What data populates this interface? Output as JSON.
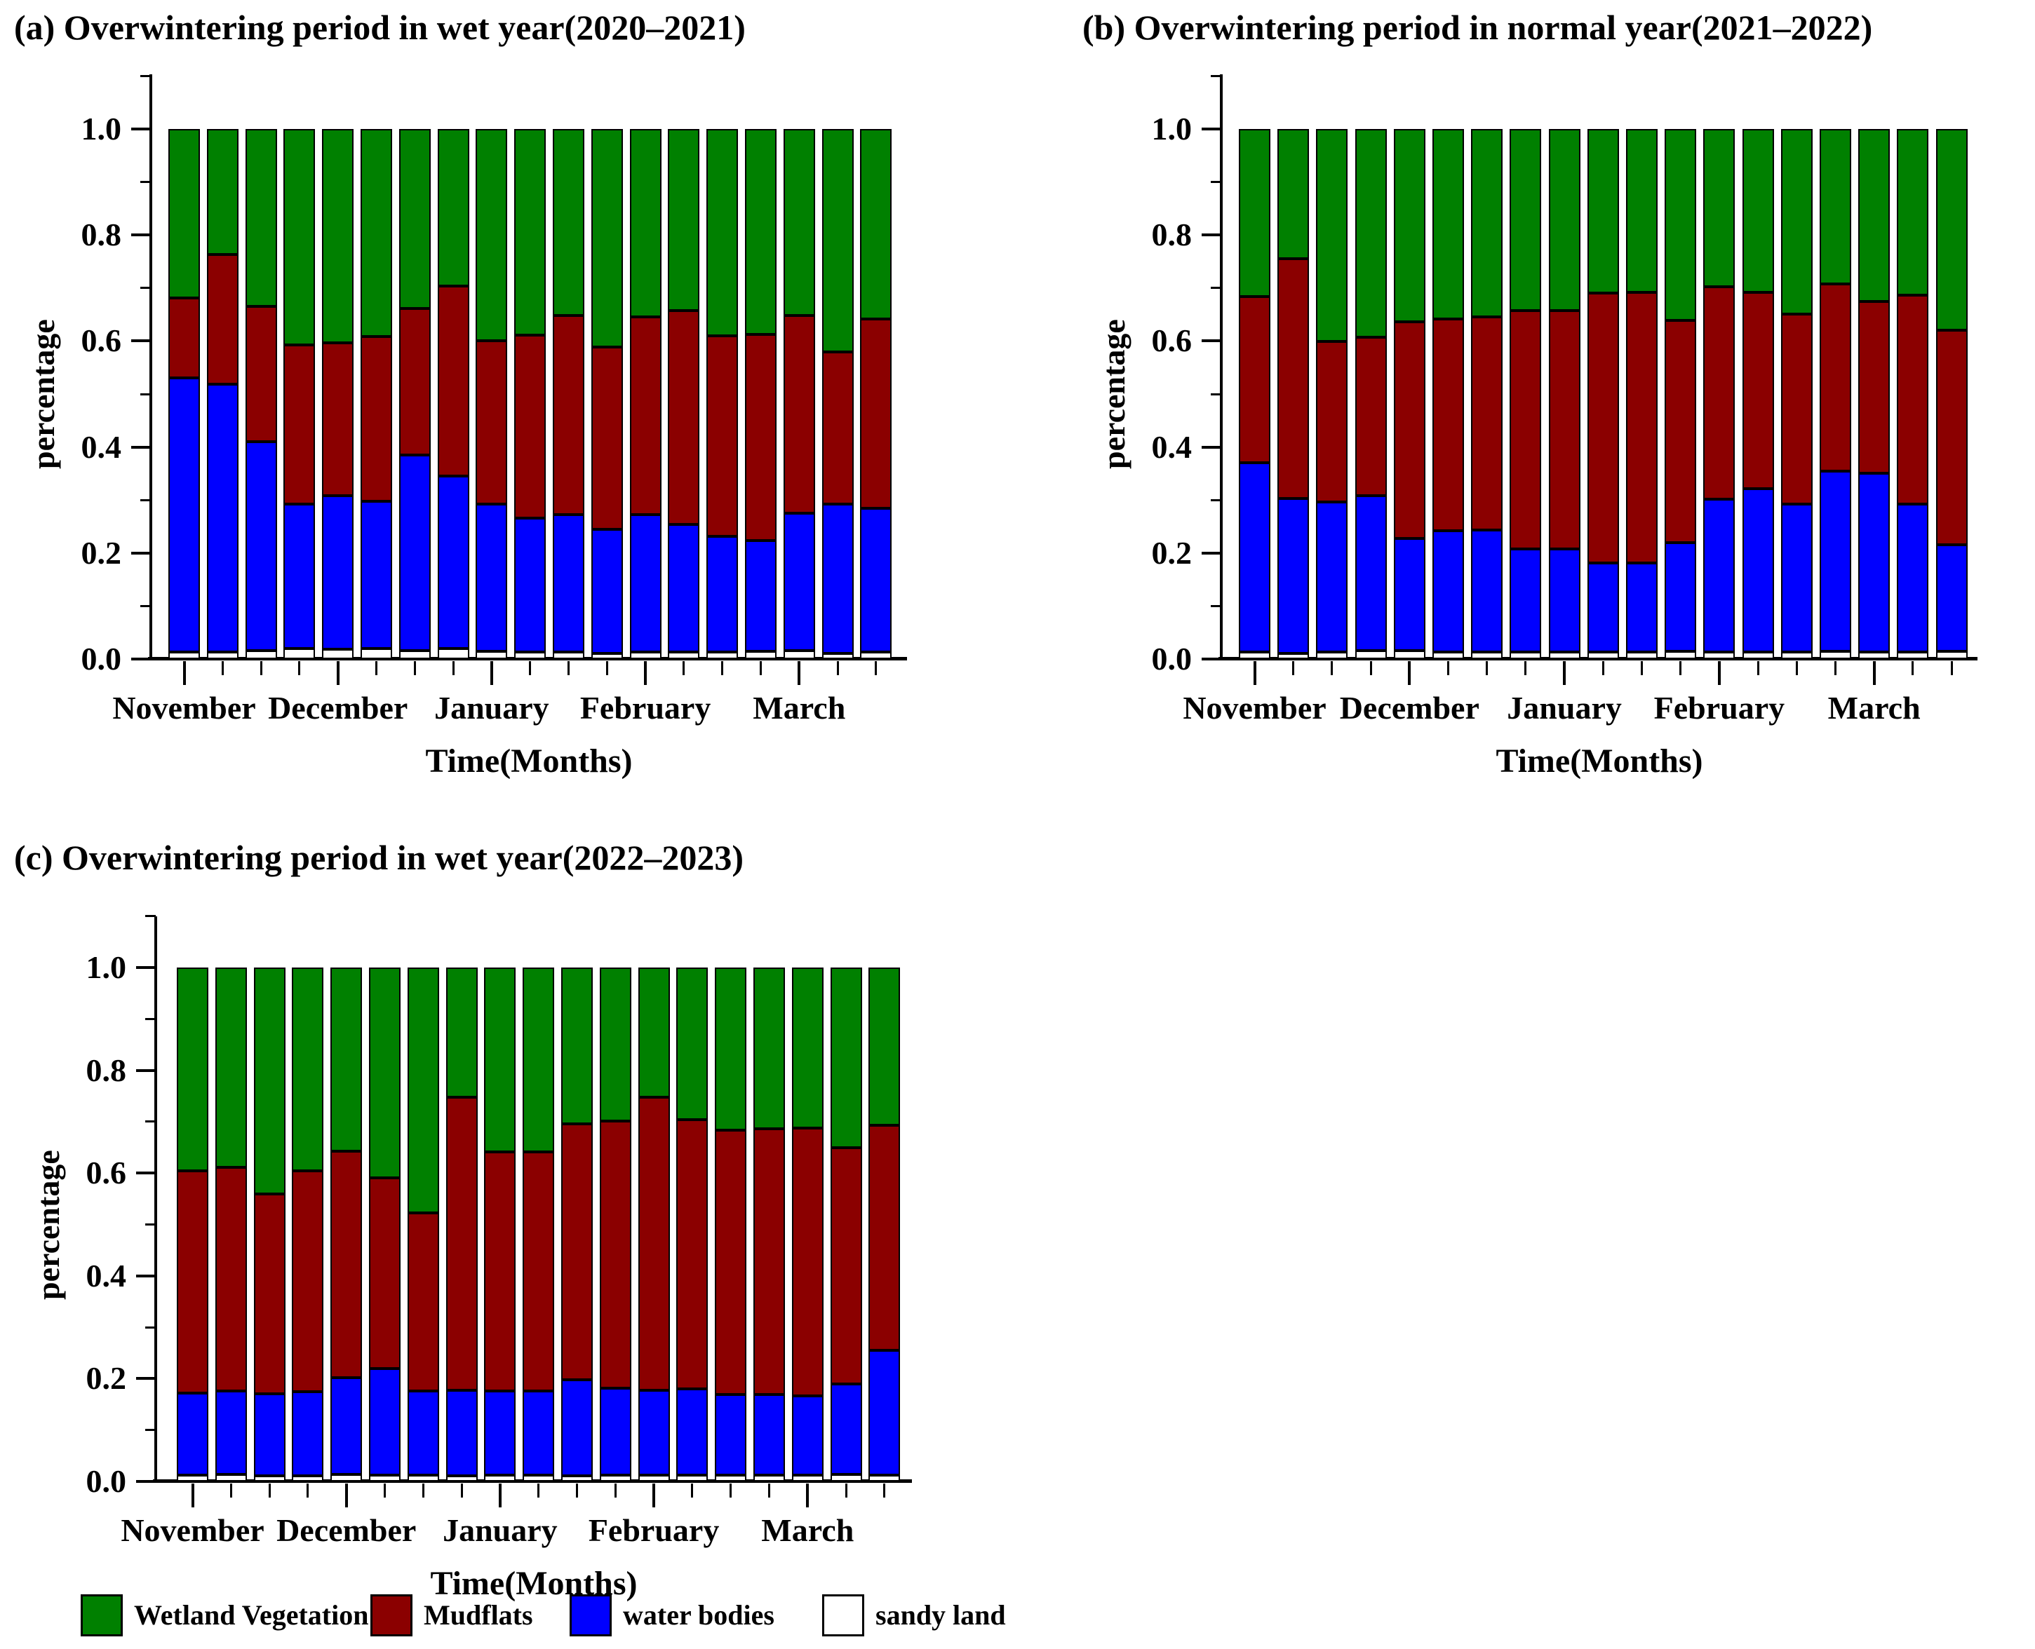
{
  "figure": {
    "legend": {
      "items": [
        {
          "label": "Wetland Vegetation",
          "color": "#008000"
        },
        {
          "label": "Mudflats",
          "color": "#8B0000"
        },
        {
          "label": "water bodies",
          "color": "#0000FF"
        },
        {
          "label": "sandy land",
          "color": "#FFFFFF"
        }
      ]
    },
    "colors": {
      "wetland_vegetation": "#008000",
      "mudflats": "#8B0000",
      "water_bodies": "#0000FF",
      "sandy_land": "#FFFFFF",
      "axis": "#000000"
    }
  },
  "chart_data": [
    {
      "id": "a",
      "type": "bar",
      "stacked": true,
      "title": "(a) Overwintering period in wet year(2020–2021)",
      "xlabel": "Time(Months)",
      "ylabel": "percentage",
      "ylim": [
        0,
        1.1
      ],
      "yticks": [
        0.0,
        0.2,
        0.4,
        0.6,
        0.8,
        1.0
      ],
      "y_minor_ticks": [
        0.1,
        0.3,
        0.5,
        0.7,
        0.9,
        1.1
      ],
      "grid": false,
      "n_bars": 19,
      "x_month_labels": [
        "November",
        "December",
        "January",
        "February",
        "March"
      ],
      "month_start_bar_indices": [
        0,
        4,
        8,
        12,
        16
      ],
      "series": [
        {
          "name": "sandy land",
          "color": "#FFFFFF",
          "values": [
            0.013,
            0.013,
            0.016,
            0.02,
            0.018,
            0.02,
            0.016,
            0.02,
            0.014,
            0.013,
            0.013,
            0.011,
            0.013,
            0.013,
            0.013,
            0.014,
            0.016,
            0.011,
            0.013
          ]
        },
        {
          "name": "water bodies",
          "color": "#0000FF",
          "values": [
            0.517,
            0.505,
            0.394,
            0.273,
            0.29,
            0.278,
            0.369,
            0.325,
            0.278,
            0.253,
            0.26,
            0.234,
            0.26,
            0.241,
            0.218,
            0.21,
            0.259,
            0.282,
            0.272
          ]
        },
        {
          "name": "Mudflats",
          "color": "#8B0000",
          "values": [
            0.151,
            0.245,
            0.255,
            0.3,
            0.289,
            0.31,
            0.276,
            0.359,
            0.309,
            0.345,
            0.375,
            0.344,
            0.373,
            0.403,
            0.379,
            0.388,
            0.373,
            0.287,
            0.356
          ]
        },
        {
          "name": "Wetland Vegetation",
          "color": "#008000",
          "values": [
            0.319,
            0.237,
            0.335,
            0.407,
            0.403,
            0.392,
            0.339,
            0.296,
            0.399,
            0.389,
            0.352,
            0.411,
            0.354,
            0.343,
            0.39,
            0.388,
            0.352,
            0.42,
            0.359
          ]
        }
      ]
    },
    {
      "id": "b",
      "type": "bar",
      "stacked": true,
      "title": "(b) Overwintering period in normal year(2021–2022)",
      "xlabel": "Time(Months)",
      "ylabel": "percentage",
      "ylim": [
        0,
        1.1
      ],
      "yticks": [
        0.0,
        0.2,
        0.4,
        0.6,
        0.8,
        1.0
      ],
      "y_minor_ticks": [
        0.1,
        0.3,
        0.5,
        0.7,
        0.9,
        1.1
      ],
      "grid": false,
      "n_bars": 19,
      "x_month_labels": [
        "November",
        "December",
        "January",
        "February",
        "March"
      ],
      "month_start_bar_indices": [
        0,
        4,
        8,
        12,
        16
      ],
      "series": [
        {
          "name": "sandy land",
          "color": "#FFFFFF",
          "values": [
            0.013,
            0.011,
            0.013,
            0.016,
            0.016,
            0.013,
            0.013,
            0.013,
            0.013,
            0.013,
            0.013,
            0.014,
            0.013,
            0.013,
            0.013,
            0.014,
            0.013,
            0.013,
            0.014
          ]
        },
        {
          "name": "water bodies",
          "color": "#0000FF",
          "values": [
            0.357,
            0.292,
            0.283,
            0.292,
            0.212,
            0.229,
            0.23,
            0.195,
            0.195,
            0.168,
            0.168,
            0.206,
            0.288,
            0.309,
            0.28,
            0.341,
            0.337,
            0.28,
            0.201
          ]
        },
        {
          "name": "Mudflats",
          "color": "#8B0000",
          "values": [
            0.314,
            0.452,
            0.303,
            0.299,
            0.408,
            0.399,
            0.402,
            0.45,
            0.45,
            0.51,
            0.511,
            0.419,
            0.401,
            0.37,
            0.358,
            0.353,
            0.325,
            0.394,
            0.406
          ]
        },
        {
          "name": "Wetland Vegetation",
          "color": "#008000",
          "values": [
            0.316,
            0.245,
            0.401,
            0.393,
            0.364,
            0.359,
            0.355,
            0.342,
            0.342,
            0.309,
            0.308,
            0.361,
            0.298,
            0.308,
            0.349,
            0.292,
            0.325,
            0.313,
            0.379
          ]
        }
      ]
    },
    {
      "id": "c",
      "type": "bar",
      "stacked": true,
      "title": "(c) Overwintering period in wet year(2022–2023)",
      "xlabel": "Time(Months)",
      "ylabel": "percentage",
      "ylim": [
        0,
        1.1
      ],
      "yticks": [
        0.0,
        0.2,
        0.4,
        0.6,
        0.8,
        1.0
      ],
      "y_minor_ticks": [
        0.1,
        0.3,
        0.5,
        0.7,
        0.9,
        1.1
      ],
      "grid": false,
      "n_bars": 19,
      "x_month_labels": [
        "November",
        "December",
        "January",
        "February",
        "March"
      ],
      "month_start_bar_indices": [
        0,
        4,
        8,
        12,
        16
      ],
      "series": [
        {
          "name": "sandy land",
          "color": "#FFFFFF",
          "values": [
            0.012,
            0.013,
            0.011,
            0.011,
            0.013,
            0.012,
            0.012,
            0.011,
            0.012,
            0.012,
            0.011,
            0.012,
            0.012,
            0.012,
            0.012,
            0.012,
            0.012,
            0.013,
            0.012
          ]
        },
        {
          "name": "water bodies",
          "color": "#0000FF",
          "values": [
            0.16,
            0.163,
            0.159,
            0.163,
            0.189,
            0.208,
            0.164,
            0.167,
            0.164,
            0.164,
            0.187,
            0.17,
            0.166,
            0.168,
            0.157,
            0.157,
            0.155,
            0.176,
            0.243
          ]
        },
        {
          "name": "Mudflats",
          "color": "#8B0000",
          "values": [
            0.433,
            0.435,
            0.389,
            0.431,
            0.441,
            0.371,
            0.346,
            0.569,
            0.465,
            0.465,
            0.498,
            0.519,
            0.569,
            0.524,
            0.515,
            0.517,
            0.521,
            0.46,
            0.438
          ]
        },
        {
          "name": "Wetland Vegetation",
          "color": "#008000",
          "values": [
            0.395,
            0.389,
            0.441,
            0.395,
            0.357,
            0.409,
            0.478,
            0.253,
            0.359,
            0.359,
            0.304,
            0.299,
            0.253,
            0.296,
            0.316,
            0.314,
            0.312,
            0.351,
            0.307
          ]
        }
      ]
    }
  ]
}
